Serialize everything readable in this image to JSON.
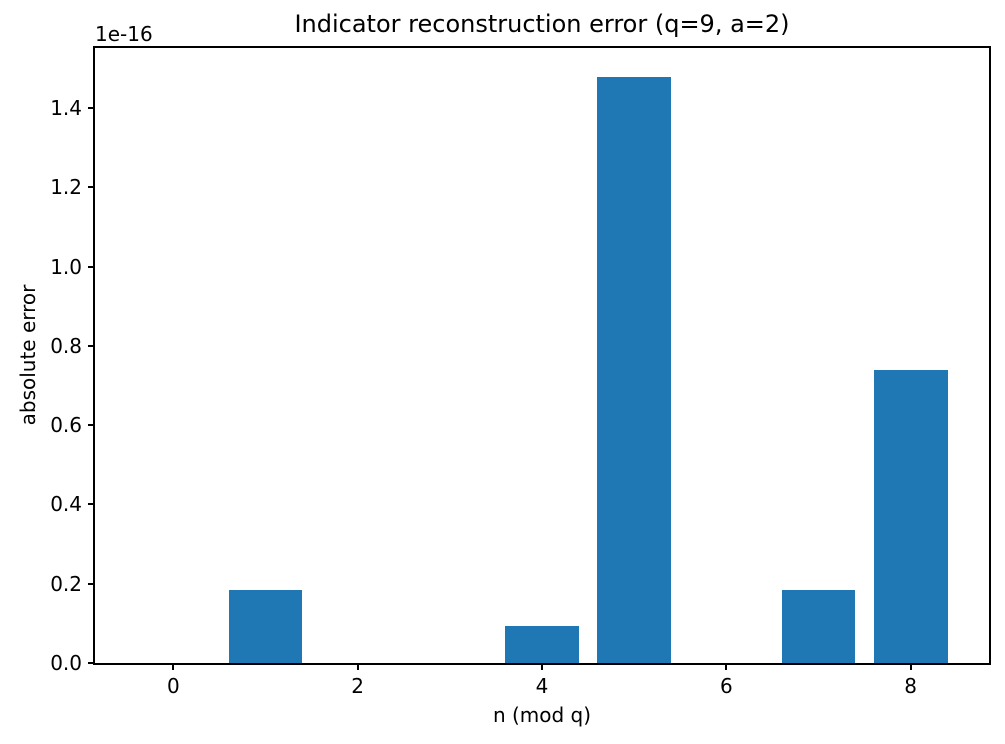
{
  "chart_data": {
    "type": "bar",
    "title": "Indicator reconstruction error (q=9, a=2)",
    "xlabel": "n (mod q)",
    "ylabel": "absolute error",
    "y_offset_text": "1e-16",
    "categories": [
      0,
      1,
      2,
      3,
      4,
      5,
      6,
      7,
      8
    ],
    "values": [
      0,
      0.185,
      0,
      0,
      0.0925,
      1.48,
      0,
      0.185,
      0.74
    ],
    "values_absolute": [
      0,
      1.85e-17,
      0,
      0,
      9.25e-18,
      1.48e-16,
      0,
      1.85e-17,
      7.4e-17
    ],
    "bar_color": "#1f77b4",
    "bar_width": 0.8,
    "xlim": [
      -0.85,
      8.85
    ],
    "ylim": [
      0,
      1.552
    ],
    "xticks": [
      0,
      2,
      4,
      6,
      8
    ],
    "yticks": [
      0.0,
      0.2,
      0.4,
      0.6,
      0.8,
      1.0,
      1.2,
      1.4
    ],
    "grid": false,
    "legend": "none",
    "background_color": "#ffffff",
    "axis_color": "#000000"
  }
}
